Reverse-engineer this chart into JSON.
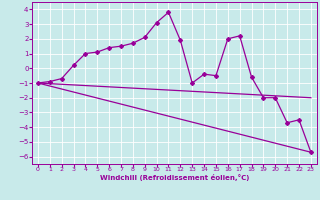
{
  "xlabel": "Windchill (Refroidissement éolien,°C)",
  "bg_color": "#c8eaea",
  "grid_color": "#ffffff",
  "line_color": "#990099",
  "xlim": [
    -0.5,
    23.5
  ],
  "ylim": [
    -6.5,
    4.5
  ],
  "xticks": [
    0,
    1,
    2,
    3,
    4,
    5,
    6,
    7,
    8,
    9,
    10,
    11,
    12,
    13,
    14,
    15,
    16,
    17,
    18,
    19,
    20,
    21,
    22,
    23
  ],
  "yticks": [
    -6,
    -5,
    -4,
    -3,
    -2,
    -1,
    0,
    1,
    2,
    3,
    4
  ],
  "series1_x": [
    0,
    1,
    2,
    3,
    4,
    5,
    6,
    7,
    8,
    9,
    10,
    11,
    12,
    13,
    14,
    15,
    16,
    17,
    18,
    19,
    20,
    21,
    22,
    23
  ],
  "series1_y": [
    -1.0,
    -0.9,
    -0.7,
    0.2,
    1.0,
    1.1,
    1.4,
    1.5,
    1.7,
    2.1,
    3.1,
    3.8,
    1.9,
    -1.0,
    -0.4,
    -0.5,
    2.0,
    2.2,
    -0.6,
    -2.0,
    -2.0,
    -3.7,
    -3.5,
    -5.7
  ],
  "series2_x": [
    0,
    23
  ],
  "series2_y": [
    -1.0,
    -2.0
  ],
  "series3_x": [
    0,
    23
  ],
  "series3_y": [
    -1.0,
    -5.7
  ],
  "marker": "D",
  "markersize": 2,
  "linewidth": 0.9,
  "tick_fontsize": 4.5,
  "xlabel_fontsize": 5.0
}
